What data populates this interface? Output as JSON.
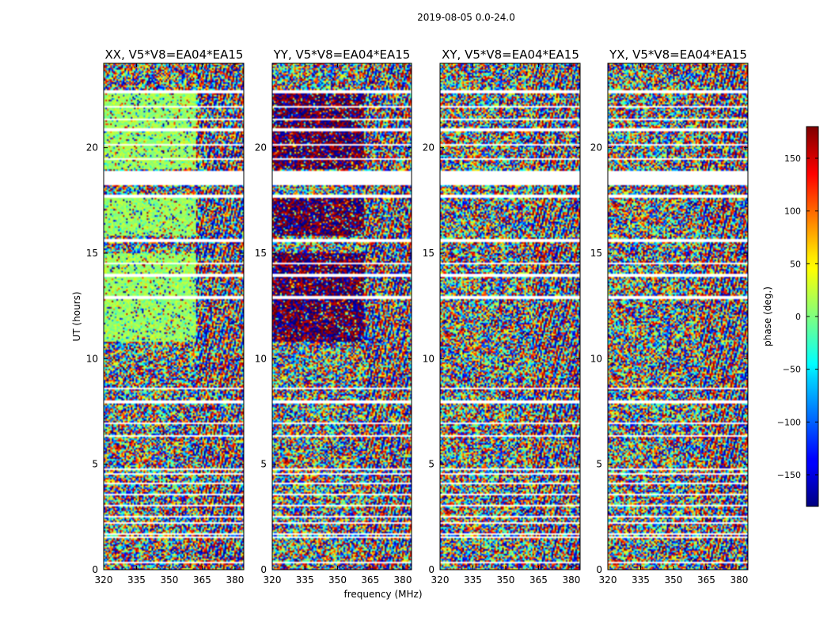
{
  "chart_data": {
    "type": "heatmap",
    "title": "2019-08-05 0.0-24.0",
    "xlabel": "frequency (MHz)",
    "ylabel": "UT (hours)",
    "xlim": [
      320,
      384
    ],
    "ylim": [
      0,
      24
    ],
    "xticks": [
      "320",
      "335",
      "350",
      "365",
      "380"
    ],
    "yticks": [
      "0",
      "5",
      "10",
      "15",
      "20"
    ],
    "xtick_values": [
      320,
      335,
      350,
      365,
      380
    ],
    "ytick_values": [
      0,
      5,
      10,
      15,
      20
    ],
    "colormap": "jet",
    "colorbar": {
      "label": "phase (deg.)",
      "range": [
        -180,
        180
      ],
      "ticks": [
        "150",
        "100",
        "50",
        "0",
        "−50",
        "−100",
        "−150"
      ],
      "tick_values": [
        150,
        100,
        50,
        0,
        -50,
        -100,
        -150
      ]
    },
    "panels": [
      {
        "title": "XX, V5*V8=EA04*EA15",
        "phase_lo_deg": 10,
        "phase_hi_deg": 40
      },
      {
        "title": "YY, V5*V8=EA04*EA15",
        "phase_lo_deg": -170,
        "phase_hi_deg": 170
      },
      {
        "title": "XY, V5*V8=EA04*EA15",
        "phase_lo_deg": null,
        "phase_hi_deg": null
      },
      {
        "title": "YX, V5*V8=EA04*EA15",
        "phase_lo_deg": null,
        "phase_hi_deg": null
      }
    ],
    "flagged_ut_ranges": [
      [
        0.3,
        0.35
      ],
      [
        1.5,
        1.6
      ],
      [
        1.65,
        1.75
      ],
      [
        2.2,
        2.25
      ],
      [
        2.5,
        2.55
      ],
      [
        3.0,
        3.1
      ],
      [
        3.55,
        3.6
      ],
      [
        4.05,
        4.1
      ],
      [
        4.5,
        4.6
      ],
      [
        4.75,
        4.8
      ],
      [
        6.3,
        6.35
      ],
      [
        6.9,
        7.0
      ],
      [
        7.9,
        8.0
      ],
      [
        8.55,
        8.6
      ],
      [
        9.05,
        9.1
      ],
      [
        9.5,
        9.55
      ],
      [
        10.25,
        10.3
      ],
      [
        12.8,
        12.95
      ],
      [
        13.4,
        13.45
      ],
      [
        13.9,
        14.0
      ],
      [
        14.5,
        14.55
      ],
      [
        15.05,
        15.1
      ],
      [
        15.55,
        15.65
      ],
      [
        16.1,
        16.15
      ],
      [
        16.55,
        16.6
      ],
      [
        17.65,
        17.75
      ],
      [
        18.2,
        18.9
      ],
      [
        19.4,
        19.5
      ],
      [
        20.1,
        20.2
      ],
      [
        20.8,
        20.9
      ],
      [
        21.3,
        21.4
      ],
      [
        21.9,
        22.0
      ],
      [
        22.6,
        22.7
      ],
      [
        23.3,
        23.35
      ]
    ],
    "coherent_band": {
      "freq_max_MHz": 362,
      "ut_ranges": [
        [
          10.8,
          12.8
        ],
        [
          13.0,
          15.0
        ],
        [
          15.8,
          17.6
        ],
        [
          19.0,
          22.6
        ]
      ]
    }
  }
}
